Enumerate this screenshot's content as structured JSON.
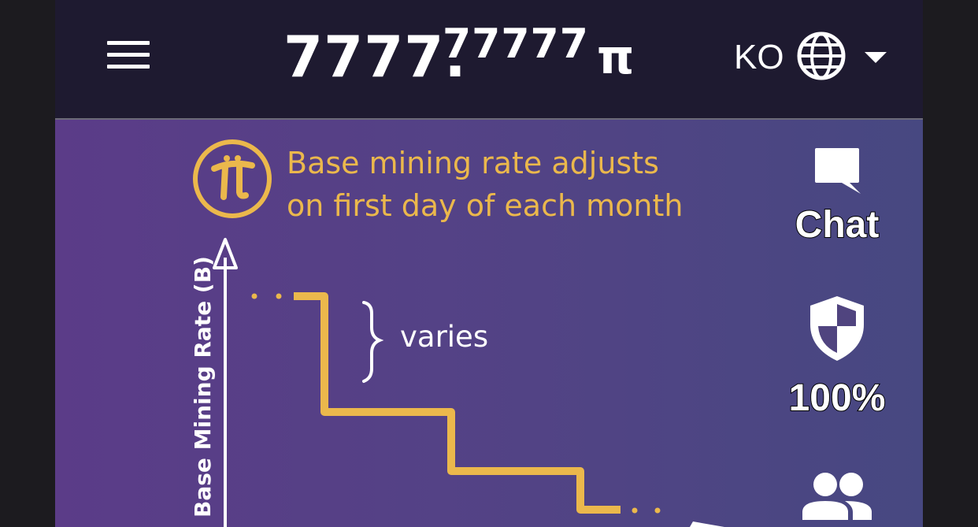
{
  "header": {
    "menu_icon": "hamburger-menu-icon",
    "balance_integer": "7777.",
    "balance_decimal": "77777",
    "balance_symbol": "π",
    "language_code": "KO",
    "globe_icon": "globe-icon",
    "dropdown_icon": "caret-down-icon"
  },
  "banner": {
    "logo": "pi-logo",
    "headline_line1": "Base mining rate adjusts",
    "headline_line2": "on first day of each month",
    "ylabel": "Base Mining Rate (B)",
    "annotation": "varies",
    "accent_color": "#ebb84c",
    "chart_data": {
      "type": "line",
      "title": "",
      "ylabel": "Base Mining Rate (B)",
      "xlabel": "",
      "series": [
        {
          "values": [
            4,
            4,
            2.6,
            2.6,
            1.85,
            1.85,
            1.2
          ]
        }
      ]
    }
  },
  "sidebar": {
    "chat_label": "Chat",
    "chat_icon": "chat-bubble-icon",
    "security_value": "100%",
    "security_icon": "shield-icon",
    "team_icon": "people-icon"
  },
  "colors": {
    "topbar": "#1e1a30",
    "gradient_left": "#5b3c88",
    "gradient_right": "#474881",
    "text": "#ffffff"
  }
}
